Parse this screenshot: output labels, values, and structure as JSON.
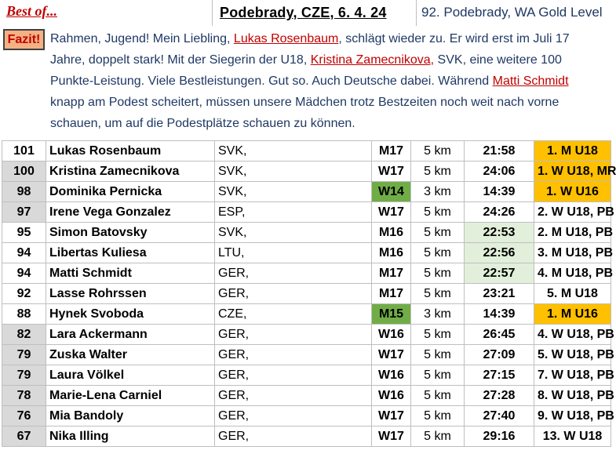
{
  "header": {
    "best_of": "Best of...",
    "event": "Podebrady, CZE, 6. 4. 24",
    "level": "92. Podebrady, WA Gold Level"
  },
  "summary": {
    "fazit_label": "Fazit!",
    "t1": "Rahmen, Jugend! Mein Liebling, ",
    "n1": "Lukas Rosenbaum",
    "t2": ", schlägt wieder zu. Er wird erst im Juli 17 Jahre, doppelt stark! Mit der Siegerin der U18, ",
    "n2": "Kristina Zamecnikova,",
    "t3": " SVK, eine weitere 100 Punkte-Leistung. Viele Bestleistungen. Gut so. Auch Deutsche dabei. Während ",
    "n3": "Matti Schmidt",
    "t4": " knapp am Podest scheitert, müssen unsere Mädchen trotz Bestzeiten noch weit nach vorne schauen, um auf die Podestplätze schauen zu können."
  },
  "colors": {
    "accent_red": "#c00000",
    "text_blue": "#1f3864",
    "gold": "#ffc000",
    "green": "#70ad47",
    "light_green": "#e2efda",
    "grey": "#d9d9d9",
    "fazit_bg": "#f4b183"
  },
  "rows": [
    {
      "points": "101",
      "name": "Lukas Rosenbaum",
      "nation": "SVK,",
      "category": "M17",
      "distance": "5 km",
      "time": "21:58",
      "place": "1. M U18",
      "pts_grey": false,
      "cat_green": false,
      "time_light": false,
      "place_gold": true
    },
    {
      "points": "100",
      "name": "Kristina Zamecnikova",
      "nation": "SVK,",
      "category": "W17",
      "distance": "5 km",
      "time": "24:06",
      "place": "1. W U18, MR",
      "pts_grey": true,
      "cat_green": false,
      "time_light": false,
      "place_gold": true
    },
    {
      "points": "98",
      "name": "Dominika Pernicka",
      "nation": "SVK,",
      "category": "W14",
      "distance": "3 km",
      "time": "14:39",
      "place": "1. W U16",
      "pts_grey": true,
      "cat_green": true,
      "time_light": false,
      "place_gold": true
    },
    {
      "points": "97",
      "name": "Irene Vega Gonzalez",
      "nation": "ESP,",
      "category": "W17",
      "distance": "5 km",
      "time": "24:26",
      "place": "2. W U18, PB",
      "pts_grey": true,
      "cat_green": false,
      "time_light": false,
      "place_gold": false
    },
    {
      "points": "95",
      "name": "Simon Batovsky",
      "nation": "SVK,",
      "category": "M16",
      "distance": "5 km",
      "time": "22:53",
      "place": "2. M U18, PB",
      "pts_grey": false,
      "cat_green": false,
      "time_light": true,
      "place_gold": false
    },
    {
      "points": "94",
      "name": "Libertas Kuliesa",
      "nation": "LTU,",
      "category": "M16",
      "distance": "5 km",
      "time": "22:56",
      "place": "3. M U18, PB",
      "pts_grey": false,
      "cat_green": false,
      "time_light": true,
      "place_gold": false
    },
    {
      "points": "94",
      "name": "Matti Schmidt",
      "nation": "GER,",
      "category": "M17",
      "distance": "5 km",
      "time": "22:57",
      "place": "4. M U18, PB",
      "pts_grey": false,
      "cat_green": false,
      "time_light": true,
      "place_gold": false
    },
    {
      "points": "92",
      "name": "Lasse Rohrssen",
      "nation": "GER,",
      "category": "M17",
      "distance": "5 km",
      "time": "23:21",
      "place": "5. M U18",
      "pts_grey": false,
      "cat_green": false,
      "time_light": false,
      "place_gold": false
    },
    {
      "points": "88",
      "name": "Hynek Svoboda",
      "nation": "CZE,",
      "category": "M15",
      "distance": "3 km",
      "time": "14:39",
      "place": "1. M U16",
      "pts_grey": false,
      "cat_green": true,
      "time_light": false,
      "place_gold": true
    },
    {
      "points": "82",
      "name": "Lara Ackermann",
      "nation": "GER,",
      "category": "W16",
      "distance": "5 km",
      "time": "26:45",
      "place": "4. W U18, PB",
      "pts_grey": true,
      "cat_green": false,
      "time_light": false,
      "place_gold": false
    },
    {
      "points": "79",
      "name": "Zuska Walter",
      "nation": "GER,",
      "category": "W17",
      "distance": "5 km",
      "time": "27:09",
      "place": "5. W U18, PB",
      "pts_grey": true,
      "cat_green": false,
      "time_light": false,
      "place_gold": false
    },
    {
      "points": "79",
      "name": "Laura Völkel",
      "nation": "GER,",
      "category": "W16",
      "distance": "5 km",
      "time": "27:15",
      "place": "7. W U18, PB",
      "pts_grey": true,
      "cat_green": false,
      "time_light": false,
      "place_gold": false
    },
    {
      "points": "78",
      "name": "Marie-Lena Carniel",
      "nation": "GER,",
      "category": "W16",
      "distance": "5 km",
      "time": "27:28",
      "place": "8. W U18, PB",
      "pts_grey": true,
      "cat_green": false,
      "time_light": false,
      "place_gold": false
    },
    {
      "points": "76",
      "name": "Mia Bandoly",
      "nation": "GER,",
      "category": "W17",
      "distance": "5 km",
      "time": "27:40",
      "place": "9. W U18, PB",
      "pts_grey": true,
      "cat_green": false,
      "time_light": false,
      "place_gold": false
    },
    {
      "points": "67",
      "name": "Nika Illing",
      "nation": "GER,",
      "category": "W17",
      "distance": "5 km",
      "time": "29:16",
      "place": "13. W U18",
      "pts_grey": true,
      "cat_green": false,
      "time_light": false,
      "place_gold": false
    }
  ]
}
